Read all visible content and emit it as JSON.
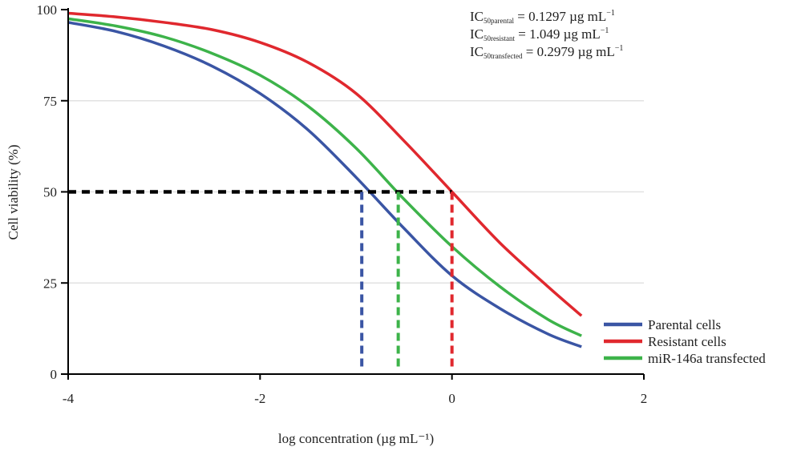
{
  "chart_data": {
    "type": "line",
    "title": "",
    "xlabel": "log concentration (µg mL⁻¹)",
    "ylabel": "Cell viability (%)",
    "xlim": [
      -4,
      2
    ],
    "ylim": [
      0,
      100
    ],
    "x_ticks": [
      "-4",
      "-2",
      "0",
      "2"
    ],
    "y_ticks": [
      "0",
      "25",
      "50",
      "75",
      "100"
    ],
    "grid": "horizontal",
    "legend_position": "bottom-right",
    "x": [
      -4,
      -3.5,
      -3,
      -2.5,
      -2,
      -1.5,
      -1,
      -0.5,
      0,
      0.5,
      1,
      1.35
    ],
    "series": [
      {
        "name": "Parental cells",
        "color": "#3a55a4",
        "values": [
          96.5,
          94,
          90,
          84.5,
          77,
          67,
          54,
          40,
          27,
          18,
          11,
          7.5
        ]
      },
      {
        "name": "Resistant cells",
        "color": "#e0282e",
        "values": [
          99,
          98,
          96.5,
          94.5,
          91,
          85.5,
          77,
          64,
          50,
          36,
          24,
          16
        ]
      },
      {
        "name": "miR-146a transfected",
        "color": "#3db34a",
        "values": [
          97.5,
          95.5,
          92.5,
          88,
          82,
          73.5,
          62,
          48,
          35,
          24,
          15,
          10.5
        ]
      }
    ],
    "ic50_markers": [
      {
        "series": "Parental cells",
        "x": -0.94,
        "y": 50
      },
      {
        "series": "miR-146a transfected",
        "x": -0.56,
        "y": 50
      },
      {
        "series": "Resistant cells",
        "x": 0,
        "y": 50
      }
    ],
    "annotations": [
      {
        "base": "IC",
        "sub": "50parental",
        "text": " = 0.1297 µg mL",
        "sup": "−1"
      },
      {
        "base": "IC",
        "sub": "50resistant",
        "text": " = 1.049 µg mL",
        "sup": "−1"
      },
      {
        "base": "IC",
        "sub": "50transfected",
        "text": " = 0.2979 µg mL",
        "sup": "−1"
      }
    ]
  }
}
